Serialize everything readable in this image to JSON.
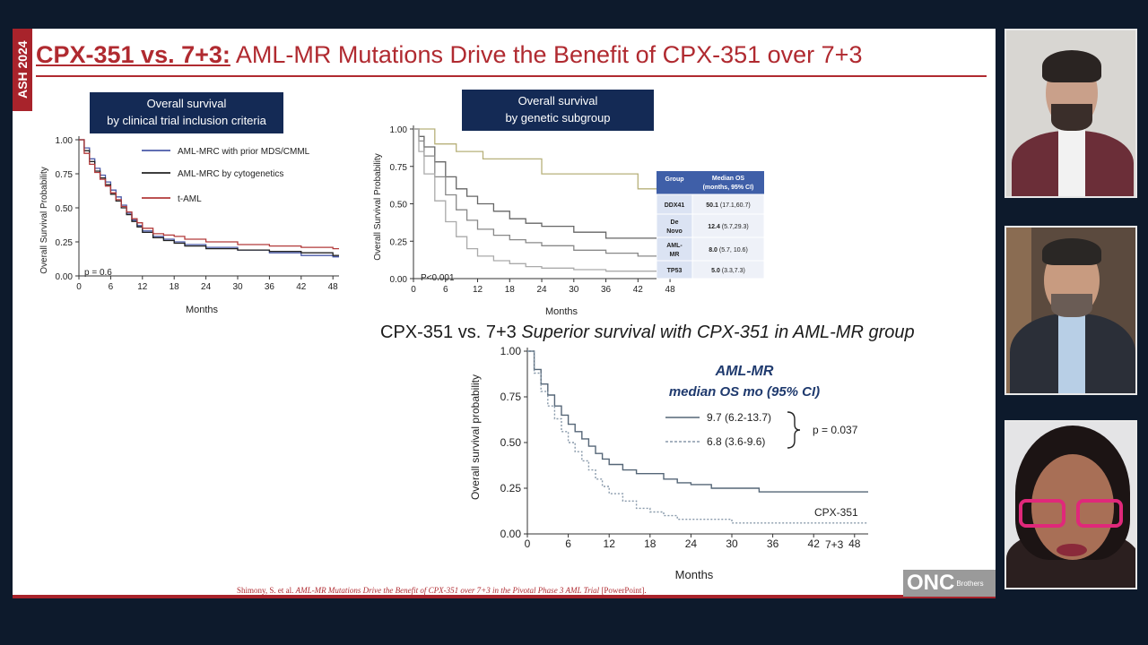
{
  "slide": {
    "conference_tag": "ASH 2024",
    "title_prefix": "CPX-351 vs. 7+3:",
    "title_rest": "AML-MR Mutations Drive the Benefit of CPX-351 over 7+3",
    "subheading_prefix": "CPX-351 vs. 7+3",
    "subheading_italic": "Superior survival with CPX-351 in AML-MR group",
    "citation_prefix": "Shimony, S. et al.",
    "citation_italic": "AML-MR Mutations Drive the Benefit of CPX-351 over 7+3 in the Pivotal Phase 3 AML Trial",
    "citation_suffix": "[PowerPoint].",
    "logo_text": "ONC",
    "logo_small": "Brothers"
  },
  "panel_left": {
    "header_line1": "Overall survival",
    "header_line2": "by clinical trial inclusion criteria",
    "pvalue": "p = 0.6"
  },
  "panel_mid": {
    "header_line1": "Overall survival",
    "header_line2": "by genetic subgroup",
    "pvalue": "P<0.001",
    "table": {
      "headers": [
        "Group",
        "Median OS (months, 95% CI)"
      ],
      "rows": [
        {
          "group": "DDX41",
          "median": "50.1",
          "ci": "(17.1,60.7)"
        },
        {
          "group": "De Novo",
          "median": "12.4",
          "ci": "(5.7,29.3)"
        },
        {
          "group": "AML-MR",
          "median": "8.0",
          "ci": "(5.7, 10.6)"
        },
        {
          "group": "TP53",
          "median": "5.0",
          "ci": "(3.3,7.3)"
        }
      ]
    }
  },
  "panel_bottom": {
    "legend_title1": "AML-MR",
    "legend_title2": "median OS mo (95% CI)",
    "legend_solid": "9.7 (6.2-13.7)",
    "legend_dashed": "6.8  (3.6-9.6)",
    "pvalue": "p = 0.037",
    "label_solid": "CPX-351",
    "label_dashed": "7+3"
  },
  "chart_data": [
    {
      "type": "line",
      "title": "Overall survival by clinical trial inclusion criteria",
      "xlabel": "Months",
      "ylabel": "Overall Survival Probability",
      "xlim": [
        0,
        50
      ],
      "ylim": [
        0,
        1
      ],
      "xticks": [
        0,
        6,
        12,
        18,
        24,
        30,
        36,
        42,
        48
      ],
      "yticks": [
        "0.00",
        "0.25",
        "0.50",
        "0.75",
        "1.00"
      ],
      "series": [
        {
          "name": "AML-MRC with prior MDS/CMML",
          "color": "#4a5aa8",
          "x": [
            0,
            1,
            2,
            3,
            4,
            5,
            6,
            7,
            8,
            9,
            10,
            11,
            12,
            14,
            16,
            18,
            20,
            24,
            30,
            36,
            42,
            48,
            50
          ],
          "y": [
            1.0,
            0.94,
            0.86,
            0.79,
            0.74,
            0.69,
            0.63,
            0.58,
            0.52,
            0.46,
            0.41,
            0.37,
            0.33,
            0.29,
            0.27,
            0.25,
            0.23,
            0.21,
            0.19,
            0.17,
            0.15,
            0.14,
            0.14
          ]
        },
        {
          "name": "AML-MRC by cytogenetics",
          "color": "#222222",
          "x": [
            0,
            1,
            2,
            3,
            4,
            5,
            6,
            7,
            8,
            9,
            10,
            11,
            12,
            14,
            16,
            18,
            20,
            24,
            30,
            36,
            42,
            48,
            50
          ],
          "y": [
            1.0,
            0.92,
            0.84,
            0.77,
            0.72,
            0.67,
            0.6,
            0.55,
            0.5,
            0.45,
            0.4,
            0.36,
            0.32,
            0.28,
            0.26,
            0.24,
            0.22,
            0.2,
            0.19,
            0.18,
            0.17,
            0.15,
            0.15
          ]
        },
        {
          "name": "t-AML",
          "color": "#b23a3a",
          "x": [
            0,
            1,
            2,
            3,
            4,
            5,
            6,
            7,
            8,
            9,
            10,
            11,
            12,
            14,
            16,
            18,
            20,
            24,
            30,
            36,
            42,
            48,
            50
          ],
          "y": [
            1.0,
            0.9,
            0.82,
            0.76,
            0.71,
            0.66,
            0.61,
            0.56,
            0.51,
            0.47,
            0.42,
            0.39,
            0.35,
            0.31,
            0.3,
            0.29,
            0.27,
            0.25,
            0.23,
            0.22,
            0.21,
            0.2,
            0.2
          ]
        }
      ]
    },
    {
      "type": "line",
      "title": "Overall survival by genetic subgroup",
      "xlabel": "Months",
      "ylabel": "Overall Survival Probability",
      "xlim": [
        0,
        50
      ],
      "ylim": [
        0,
        1
      ],
      "xticks": [
        0,
        6,
        12,
        18,
        24,
        30,
        36,
        42,
        48
      ],
      "yticks": [
        "0.00",
        "0.25",
        "0.50",
        "0.75",
        "1.00"
      ],
      "series": [
        {
          "name": "DDX41",
          "color": "#b7b07a",
          "x": [
            0,
            3,
            4,
            7,
            8,
            12,
            13,
            20,
            24,
            30,
            38,
            42,
            46,
            50
          ],
          "y": [
            1.0,
            1.0,
            0.9,
            0.9,
            0.85,
            0.85,
            0.8,
            0.8,
            0.7,
            0.7,
            0.7,
            0.6,
            0.58,
            0.58
          ]
        },
        {
          "name": "De Novo",
          "color": "#666666",
          "x": [
            0,
            1,
            2,
            4,
            6,
            8,
            10,
            12,
            15,
            18,
            21,
            24,
            30,
            36,
            42,
            48,
            50
          ],
          "y": [
            1.0,
            0.95,
            0.88,
            0.78,
            0.68,
            0.6,
            0.55,
            0.5,
            0.45,
            0.4,
            0.37,
            0.35,
            0.31,
            0.27,
            0.27,
            0.27,
            0.27
          ]
        },
        {
          "name": "AML-MR",
          "color": "#888888",
          "x": [
            0,
            1,
            2,
            4,
            6,
            8,
            10,
            12,
            15,
            18,
            21,
            24,
            30,
            36,
            42,
            48,
            50
          ],
          "y": [
            1.0,
            0.92,
            0.82,
            0.68,
            0.56,
            0.46,
            0.39,
            0.33,
            0.29,
            0.26,
            0.24,
            0.22,
            0.19,
            0.17,
            0.15,
            0.15,
            0.15
          ]
        },
        {
          "name": "TP53",
          "color": "#aaaaaa",
          "x": [
            0,
            1,
            2,
            4,
            6,
            8,
            10,
            12,
            15,
            18,
            21,
            24,
            30,
            36,
            42,
            48,
            50
          ],
          "y": [
            1.0,
            0.85,
            0.7,
            0.52,
            0.38,
            0.28,
            0.2,
            0.15,
            0.12,
            0.1,
            0.08,
            0.07,
            0.06,
            0.05,
            0.05,
            0.05,
            0.05
          ]
        }
      ]
    },
    {
      "type": "line",
      "title": "CPX-351 vs. 7+3 Superior survival with CPX-351 in AML-MR group",
      "xlabel": "Months",
      "ylabel": "Overall survival probability",
      "xlim": [
        0,
        50
      ],
      "ylim": [
        0,
        1
      ],
      "xticks": [
        0,
        6,
        12,
        18,
        24,
        30,
        36,
        42,
        48
      ],
      "yticks": [
        "0.00",
        "0.25",
        "0.50",
        "0.75",
        "1.00"
      ],
      "series": [
        {
          "name": "CPX-351",
          "color": "#556677",
          "dashed": false,
          "x": [
            0,
            1,
            2,
            3,
            4,
            5,
            6,
            7,
            8,
            9,
            10,
            11,
            12,
            14,
            16,
            18,
            20,
            22,
            24,
            27,
            30,
            34,
            40,
            48,
            50
          ],
          "y": [
            1.0,
            0.9,
            0.82,
            0.76,
            0.7,
            0.65,
            0.6,
            0.56,
            0.52,
            0.48,
            0.44,
            0.41,
            0.38,
            0.35,
            0.33,
            0.33,
            0.3,
            0.28,
            0.27,
            0.25,
            0.25,
            0.23,
            0.23,
            0.23,
            0.23
          ]
        },
        {
          "name": "7+3",
          "color": "#8899aa",
          "dashed": true,
          "x": [
            0,
            1,
            2,
            3,
            4,
            5,
            6,
            7,
            8,
            9,
            10,
            11,
            12,
            14,
            16,
            18,
            20,
            22,
            24,
            27,
            30,
            36,
            42,
            48,
            50
          ],
          "y": [
            1.0,
            0.88,
            0.78,
            0.7,
            0.63,
            0.56,
            0.5,
            0.45,
            0.4,
            0.35,
            0.3,
            0.26,
            0.22,
            0.18,
            0.14,
            0.12,
            0.1,
            0.08,
            0.08,
            0.08,
            0.06,
            0.06,
            0.06,
            0.06,
            0.06
          ]
        }
      ]
    }
  ]
}
